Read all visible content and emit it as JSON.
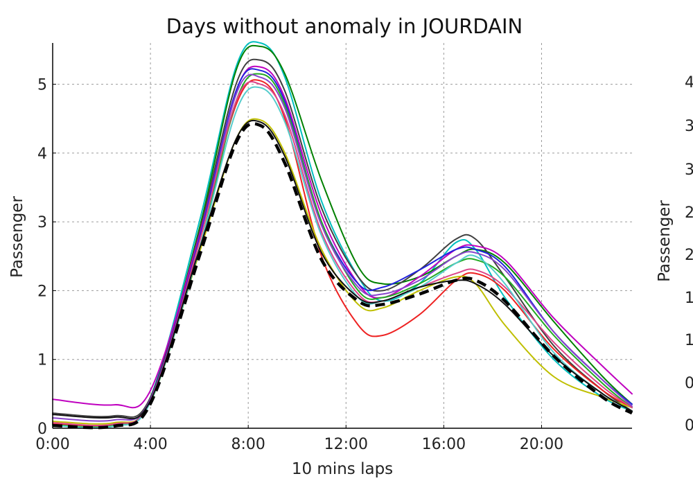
{
  "chart_data": [
    {
      "type": "line",
      "title": "Days without anomaly in JOURDAIN",
      "xlabel": "10 mins laps",
      "ylabel": "Passenger",
      "x_unit": "hours",
      "xlim": [
        0,
        23.7
      ],
      "ylim": [
        0,
        5.6
      ],
      "x_ticks": [
        0,
        4,
        8,
        12,
        16,
        20
      ],
      "x_tick_labels": [
        "0:00",
        "4:00",
        "8:00",
        "12:00",
        "16:00",
        "20:00"
      ],
      "y_ticks": [
        0,
        1,
        2,
        3,
        4,
        5
      ],
      "y_tick_labels": [
        "0",
        "1",
        "2",
        "3",
        "4",
        "5"
      ],
      "grid": true,
      "series": [
        {
          "color": "#00bfbf",
          "x": [
            0,
            2.5,
            4,
            6,
            7.5,
            8.5,
            9.5,
            11,
            12.5,
            13.5,
            15,
            16.5,
            17.3,
            18.5,
            20.5,
            22.5,
            23.7
          ],
          "y": [
            0.05,
            0.04,
            0.45,
            3.0,
            5.25,
            5.6,
            5.1,
            3.3,
            2.2,
            1.85,
            2.1,
            2.7,
            2.6,
            1.9,
            1.0,
            0.45,
            0.25
          ]
        },
        {
          "color": "#008000",
          "x": [
            0,
            2.5,
            4,
            6,
            7.5,
            8.5,
            9.5,
            11,
            12.5,
            13.5,
            15,
            16.5,
            17.3,
            18.5,
            20.5,
            22.5,
            23.7
          ],
          "y": [
            0.05,
            0.04,
            0.42,
            2.9,
            5.2,
            5.55,
            5.15,
            3.6,
            2.35,
            2.1,
            2.2,
            2.5,
            2.6,
            2.4,
            1.55,
            0.75,
            0.35
          ]
        },
        {
          "color": "#404040",
          "x": [
            0,
            2.5,
            4,
            6,
            7.5,
            8.5,
            9.5,
            11,
            12.5,
            13.5,
            15,
            16.5,
            17.3,
            18.5,
            20.5,
            22.5,
            23.7
          ],
          "y": [
            0.22,
            0.18,
            0.45,
            2.85,
            5.0,
            5.35,
            4.9,
            3.2,
            2.2,
            2.0,
            2.3,
            2.75,
            2.75,
            2.2,
            1.2,
            0.55,
            0.25
          ]
        },
        {
          "color": "#bf00bf",
          "x": [
            0,
            2.5,
            4,
            6,
            7.5,
            8.5,
            9.5,
            11,
            12.5,
            13.5,
            15,
            16.5,
            17.3,
            18.5,
            20.5,
            22.5,
            23.7
          ],
          "y": [
            0.42,
            0.34,
            0.55,
            2.8,
            4.9,
            5.25,
            4.8,
            3.1,
            2.1,
            1.9,
            2.2,
            2.6,
            2.65,
            2.45,
            1.6,
            0.9,
            0.5
          ]
        },
        {
          "color": "#ee2222",
          "x": [
            0,
            2.5,
            4,
            6,
            7.5,
            8.5,
            9.5,
            11,
            12.5,
            13.5,
            15,
            16.5,
            17.3,
            18.5,
            20.5,
            22.5,
            23.7
          ],
          "y": [
            0.06,
            0.05,
            0.4,
            2.75,
            4.7,
            5.05,
            4.5,
            2.5,
            1.5,
            1.35,
            1.65,
            2.15,
            2.25,
            2.0,
            1.15,
            0.55,
            0.3
          ]
        },
        {
          "color": "#2222dd",
          "x": [
            0,
            2.5,
            4,
            6,
            7.5,
            8.5,
            9.5,
            11,
            12.5,
            13.5,
            15,
            16.5,
            17.3,
            18.5,
            20.5,
            22.5,
            23.7
          ],
          "y": [
            0.05,
            0.04,
            0.42,
            2.75,
            4.9,
            5.2,
            4.75,
            3.0,
            2.1,
            2.05,
            2.3,
            2.6,
            2.6,
            2.35,
            1.4,
            0.7,
            0.35
          ]
        },
        {
          "color": "#bfbf00",
          "x": [
            0,
            2.5,
            4,
            6,
            7.5,
            8.5,
            9.5,
            11,
            12.5,
            13.5,
            15,
            16.5,
            17.3,
            18.5,
            20.5,
            22.5,
            23.7
          ],
          "y": [
            0.1,
            0.08,
            0.38,
            2.55,
            4.2,
            4.48,
            4.0,
            2.6,
            1.8,
            1.75,
            2.0,
            2.2,
            2.1,
            1.5,
            0.75,
            0.45,
            0.3
          ]
        },
        {
          "color": "#22aa22",
          "x": [
            0,
            2.5,
            4,
            6,
            7.5,
            8.5,
            9.5,
            11,
            12.5,
            13.5,
            15,
            16.5,
            17.3,
            18.5,
            20.5,
            22.5,
            23.7
          ],
          "y": [
            0.05,
            0.04,
            0.4,
            2.6,
            4.75,
            5.15,
            4.7,
            3.0,
            2.0,
            1.9,
            2.1,
            2.4,
            2.45,
            2.2,
            1.35,
            0.65,
            0.3
          ]
        },
        {
          "color": "#8844cc",
          "x": [
            0,
            2.5,
            4,
            6,
            7.5,
            8.5,
            9.5,
            11,
            12.5,
            13.5,
            15,
            16.5,
            17.3,
            18.5,
            20.5,
            22.5,
            23.7
          ],
          "y": [
            0.15,
            0.12,
            0.42,
            2.7,
            4.85,
            5.1,
            4.65,
            2.95,
            2.05,
            1.95,
            2.15,
            2.5,
            2.55,
            2.3,
            1.4,
            0.7,
            0.32
          ]
        },
        {
          "color": "#dd4488",
          "x": [
            0,
            2.5,
            4,
            6,
            7.5,
            8.5,
            9.5,
            11,
            12.5,
            13.5,
            15,
            16.5,
            17.3,
            18.5,
            20.5,
            22.5,
            23.7
          ],
          "y": [
            0.08,
            0.06,
            0.4,
            2.7,
            4.75,
            5.0,
            4.55,
            2.85,
            1.95,
            1.85,
            2.05,
            2.25,
            2.3,
            2.05,
            1.25,
            0.6,
            0.3
          ]
        },
        {
          "color": "#55cccc",
          "x": [
            0,
            2.5,
            4,
            6,
            7.5,
            8.5,
            9.5,
            11,
            12.5,
            13.5,
            15,
            16.5,
            17.3,
            18.5,
            20.5,
            22.5,
            23.7
          ],
          "y": [
            0.04,
            0.03,
            0.38,
            2.6,
            4.6,
            4.95,
            4.45,
            2.8,
            1.9,
            1.85,
            2.05,
            2.4,
            2.5,
            2.1,
            1.1,
            0.5,
            0.25
          ]
        },
        {
          "color": "#111111",
          "x": [
            0,
            2.5,
            4,
            6,
            7.5,
            8.5,
            9.5,
            11,
            12.5,
            13.5,
            15,
            16.5,
            17.3,
            18.5,
            20.5,
            22.5,
            23.7
          ],
          "y": [
            0.2,
            0.16,
            0.4,
            2.6,
            4.2,
            4.45,
            3.95,
            2.55,
            1.9,
            1.85,
            2.05,
            2.15,
            2.1,
            1.8,
            1.05,
            0.5,
            0.25
          ]
        }
      ],
      "reference_series": {
        "color": "#000000",
        "style": "dashed",
        "x": [
          0,
          2.5,
          4,
          6,
          7.5,
          8.5,
          9.5,
          11,
          12.5,
          13.5,
          15,
          16.5,
          17.3,
          18.5,
          20.5,
          22.5,
          23.7
        ],
        "y": [
          0.04,
          0.03,
          0.36,
          2.5,
          4.15,
          4.4,
          3.85,
          2.45,
          1.85,
          1.8,
          1.95,
          2.15,
          2.15,
          1.85,
          1.05,
          0.45,
          0.22
        ]
      }
    },
    {
      "type": "line",
      "ylabel": "Passenger",
      "y_tick_labels_visible": [
        "4",
        "3",
        "3",
        "2",
        "2",
        "1",
        "1",
        "0",
        "0"
      ]
    }
  ]
}
